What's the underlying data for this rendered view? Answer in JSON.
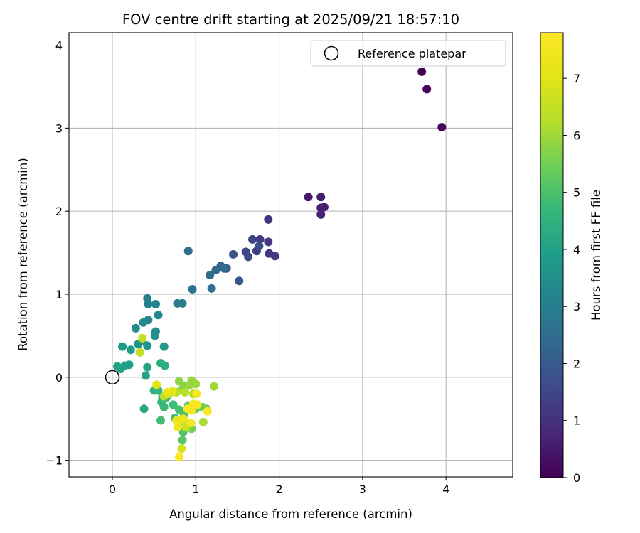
{
  "chart_data": {
    "type": "scatter",
    "title": "FOV centre drift starting at 2025/09/21 18:57:10",
    "xlabel": "Angular distance from reference (arcmin)",
    "ylabel": "Rotation from reference (arcmin)",
    "xlim": [
      -0.52,
      4.8
    ],
    "ylim": [
      -1.2,
      4.15
    ],
    "xticks": [
      0,
      1,
      2,
      3,
      4
    ],
    "yticks": [
      -1,
      0,
      1,
      2,
      3,
      4
    ],
    "grid": true,
    "legend": {
      "label": "Reference platepar",
      "placement": "top-right"
    },
    "reference_point": {
      "x": 0,
      "y": 0
    },
    "colorbar": {
      "label": "Hours from first FF file",
      "colormap": "viridis",
      "range": [
        0,
        7.8
      ],
      "ticks": [
        0,
        1,
        2,
        3,
        4,
        5,
        6,
        7
      ]
    },
    "points": [
      {
        "x": 3.71,
        "y": 3.68,
        "t": 0.05
      },
      {
        "x": 3.77,
        "y": 3.47,
        "t": 0.08
      },
      {
        "x": 3.95,
        "y": 3.01,
        "t": 0.12
      },
      {
        "x": 2.35,
        "y": 2.17,
        "t": 0.5
      },
      {
        "x": 2.5,
        "y": 2.17,
        "t": 0.55
      },
      {
        "x": 2.5,
        "y": 2.04,
        "t": 0.6
      },
      {
        "x": 2.54,
        "y": 2.05,
        "t": 0.62
      },
      {
        "x": 2.5,
        "y": 1.96,
        "t": 0.65
      },
      {
        "x": 1.87,
        "y": 1.9,
        "t": 1.05
      },
      {
        "x": 1.87,
        "y": 1.63,
        "t": 1.1
      },
      {
        "x": 1.88,
        "y": 1.49,
        "t": 1.15
      },
      {
        "x": 1.95,
        "y": 1.46,
        "t": 1.2
      },
      {
        "x": 1.77,
        "y": 1.66,
        "t": 1.25
      },
      {
        "x": 1.73,
        "y": 1.52,
        "t": 1.3
      },
      {
        "x": 1.68,
        "y": 1.66,
        "t": 1.4
      },
      {
        "x": 1.6,
        "y": 1.51,
        "t": 1.5
      },
      {
        "x": 1.63,
        "y": 1.45,
        "t": 1.55
      },
      {
        "x": 1.76,
        "y": 1.58,
        "t": 1.65
      },
      {
        "x": 1.45,
        "y": 1.48,
        "t": 1.8
      },
      {
        "x": 1.52,
        "y": 1.16,
        "t": 1.9
      },
      {
        "x": 1.37,
        "y": 1.31,
        "t": 2.1
      },
      {
        "x": 1.3,
        "y": 1.34,
        "t": 2.2
      },
      {
        "x": 1.24,
        "y": 1.29,
        "t": 2.3
      },
      {
        "x": 1.17,
        "y": 1.23,
        "t": 2.4
      },
      {
        "x": 0.91,
        "y": 1.52,
        "t": 2.45
      },
      {
        "x": 1.34,
        "y": 1.31,
        "t": 2.5
      },
      {
        "x": 1.19,
        "y": 1.07,
        "t": 2.6
      },
      {
        "x": 0.96,
        "y": 1.06,
        "t": 2.7
      },
      {
        "x": 0.84,
        "y": 0.89,
        "t": 2.9
      },
      {
        "x": 0.78,
        "y": 0.89,
        "t": 3.0
      },
      {
        "x": 0.42,
        "y": 0.95,
        "t": 3.05
      },
      {
        "x": 0.43,
        "y": 0.88,
        "t": 3.1
      },
      {
        "x": 0.52,
        "y": 0.88,
        "t": 3.15
      },
      {
        "x": 0.55,
        "y": 0.75,
        "t": 3.2
      },
      {
        "x": 0.43,
        "y": 0.69,
        "t": 3.3
      },
      {
        "x": 0.37,
        "y": 0.66,
        "t": 3.35
      },
      {
        "x": 0.28,
        "y": 0.59,
        "t": 3.4
      },
      {
        "x": 0.52,
        "y": 0.55,
        "t": 3.45
      },
      {
        "x": 0.51,
        "y": 0.5,
        "t": 3.5
      },
      {
        "x": 0.36,
        "y": 0.44,
        "t": 3.55
      },
      {
        "x": 0.31,
        "y": 0.4,
        "t": 3.6
      },
      {
        "x": 0.42,
        "y": 0.38,
        "t": 3.65
      },
      {
        "x": 0.62,
        "y": 0.37,
        "t": 3.7
      },
      {
        "x": 0.12,
        "y": 0.37,
        "t": 3.75
      },
      {
        "x": 0.22,
        "y": 0.33,
        "t": 3.8
      },
      {
        "x": 0.33,
        "y": 0.3,
        "t": 3.85
      },
      {
        "x": 0.2,
        "y": 0.15,
        "t": 3.9
      },
      {
        "x": 0.15,
        "y": 0.14,
        "t": 3.95
      },
      {
        "x": 0.06,
        "y": 0.13,
        "t": 4.0
      },
      {
        "x": 0.1,
        "y": 0.1,
        "t": 4.05
      },
      {
        "x": 0.42,
        "y": 0.12,
        "t": 4.1
      },
      {
        "x": 0.4,
        "y": 0.02,
        "t": 4.15
      },
      {
        "x": 0.38,
        "y": -0.38,
        "t": 4.2
      },
      {
        "x": 0.63,
        "y": 0.14,
        "t": 4.3
      },
      {
        "x": 0.58,
        "y": 0.17,
        "t": 4.4
      },
      {
        "x": 0.5,
        "y": -0.16,
        "t": 4.5
      },
      {
        "x": 0.6,
        "y": -0.24,
        "t": 4.55
      },
      {
        "x": 0.55,
        "y": -0.16,
        "t": 4.6
      },
      {
        "x": 0.65,
        "y": -0.24,
        "t": 4.65
      },
      {
        "x": 0.59,
        "y": -0.3,
        "t": 4.7
      },
      {
        "x": 0.62,
        "y": -0.36,
        "t": 4.75
      },
      {
        "x": 0.73,
        "y": -0.33,
        "t": 4.8
      },
      {
        "x": 0.58,
        "y": -0.52,
        "t": 4.85
      },
      {
        "x": 0.75,
        "y": -0.49,
        "t": 4.9
      },
      {
        "x": 0.8,
        "y": -0.39,
        "t": 4.95
      },
      {
        "x": 0.86,
        "y": -0.45,
        "t": 5.0
      },
      {
        "x": 0.81,
        "y": -0.53,
        "t": 5.05
      },
      {
        "x": 0.85,
        "y": -0.66,
        "t": 5.1
      },
      {
        "x": 0.84,
        "y": -0.76,
        "t": 5.15
      },
      {
        "x": 0.91,
        "y": -0.34,
        "t": 5.2
      },
      {
        "x": 1.0,
        "y": -0.38,
        "t": 5.3
      },
      {
        "x": 1.08,
        "y": -0.36,
        "t": 5.4
      },
      {
        "x": 1.13,
        "y": -0.38,
        "t": 5.5
      },
      {
        "x": 0.95,
        "y": -0.62,
        "t": 5.55
      },
      {
        "x": 0.88,
        "y": -0.56,
        "t": 5.6
      },
      {
        "x": 0.83,
        "y": -0.15,
        "t": 5.7
      },
      {
        "x": 0.86,
        "y": -0.1,
        "t": 5.75
      },
      {
        "x": 0.8,
        "y": -0.05,
        "t": 5.8
      },
      {
        "x": 0.95,
        "y": -0.04,
        "t": 5.85
      },
      {
        "x": 0.92,
        "y": -0.1,
        "t": 5.9
      },
      {
        "x": 1.0,
        "y": -0.08,
        "t": 5.95
      },
      {
        "x": 1.22,
        "y": -0.11,
        "t": 6.0
      },
      {
        "x": 1.09,
        "y": -0.54,
        "t": 6.1
      },
      {
        "x": 0.97,
        "y": -0.2,
        "t": 6.2
      },
      {
        "x": 0.87,
        "y": -0.18,
        "t": 6.25
      },
      {
        "x": 0.77,
        "y": -0.18,
        "t": 6.3
      },
      {
        "x": 0.62,
        "y": -0.23,
        "t": 6.35
      },
      {
        "x": 0.68,
        "y": -0.2,
        "t": 6.45
      },
      {
        "x": 0.36,
        "y": 0.47,
        "t": 6.5
      },
      {
        "x": 0.33,
        "y": 0.3,
        "t": 6.55
      },
      {
        "x": 0.88,
        "y": -0.6,
        "t": 6.6
      },
      {
        "x": 0.83,
        "y": -0.86,
        "t": 6.8
      },
      {
        "x": 0.53,
        "y": -0.09,
        "t": 7.0
      },
      {
        "x": 0.72,
        "y": -0.17,
        "t": 7.1
      },
      {
        "x": 0.66,
        "y": -0.18,
        "t": 7.2
      },
      {
        "x": 0.77,
        "y": -0.52,
        "t": 7.3
      },
      {
        "x": 0.79,
        "y": -0.54,
        "t": 7.35
      },
      {
        "x": 0.85,
        "y": -0.5,
        "t": 7.4
      },
      {
        "x": 0.78,
        "y": -0.6,
        "t": 7.45
      },
      {
        "x": 0.94,
        "y": -0.55,
        "t": 7.5
      },
      {
        "x": 0.95,
        "y": -0.4,
        "t": 7.55
      },
      {
        "x": 0.97,
        "y": -0.32,
        "t": 7.6
      },
      {
        "x": 1.02,
        "y": -0.33,
        "t": 7.62
      },
      {
        "x": 1.01,
        "y": -0.2,
        "t": 7.65
      },
      {
        "x": 1.14,
        "y": -0.41,
        "t": 7.7
      },
      {
        "x": 0.9,
        "y": -0.38,
        "t": 7.72
      },
      {
        "x": 0.8,
        "y": -0.96,
        "t": 7.75
      }
    ]
  }
}
